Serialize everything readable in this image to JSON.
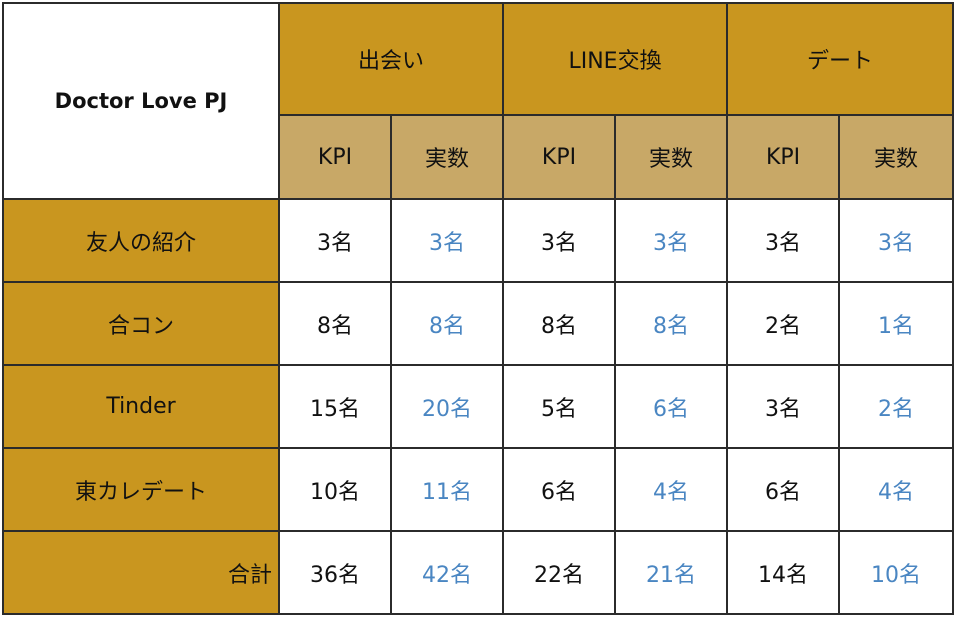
{
  "table": {
    "corner_label": "Doctor Love PJ",
    "groups": [
      "出会い",
      "LINE交換",
      "デート"
    ],
    "sub_headers": [
      "KPI",
      "実数",
      "KPI",
      "実数",
      "KPI",
      "実数"
    ],
    "rows": [
      {
        "label": "友人の紹介",
        "values": [
          "3名",
          "3名",
          "3名",
          "3名",
          "3名",
          "3名"
        ]
      },
      {
        "label": "合コン",
        "values": [
          "8名",
          "8名",
          "8名",
          "8名",
          "2名",
          "1名"
        ]
      },
      {
        "label": "Tinder",
        "values": [
          "15名",
          "20名",
          "5名",
          "6名",
          "3名",
          "2名"
        ]
      },
      {
        "label": "東カレデート",
        "values": [
          "10名",
          "11名",
          "6名",
          "4名",
          "6名",
          "4名"
        ]
      },
      {
        "label": "合計",
        "values": [
          "36名",
          "42名",
          "22名",
          "21名",
          "14名",
          "10名"
        ]
      }
    ],
    "colors": {
      "header_gold": "#c9961f",
      "subheader_tan": "#c8a867",
      "actual_value_blue": "#4a86c2",
      "border": "#2b2b2b"
    }
  }
}
